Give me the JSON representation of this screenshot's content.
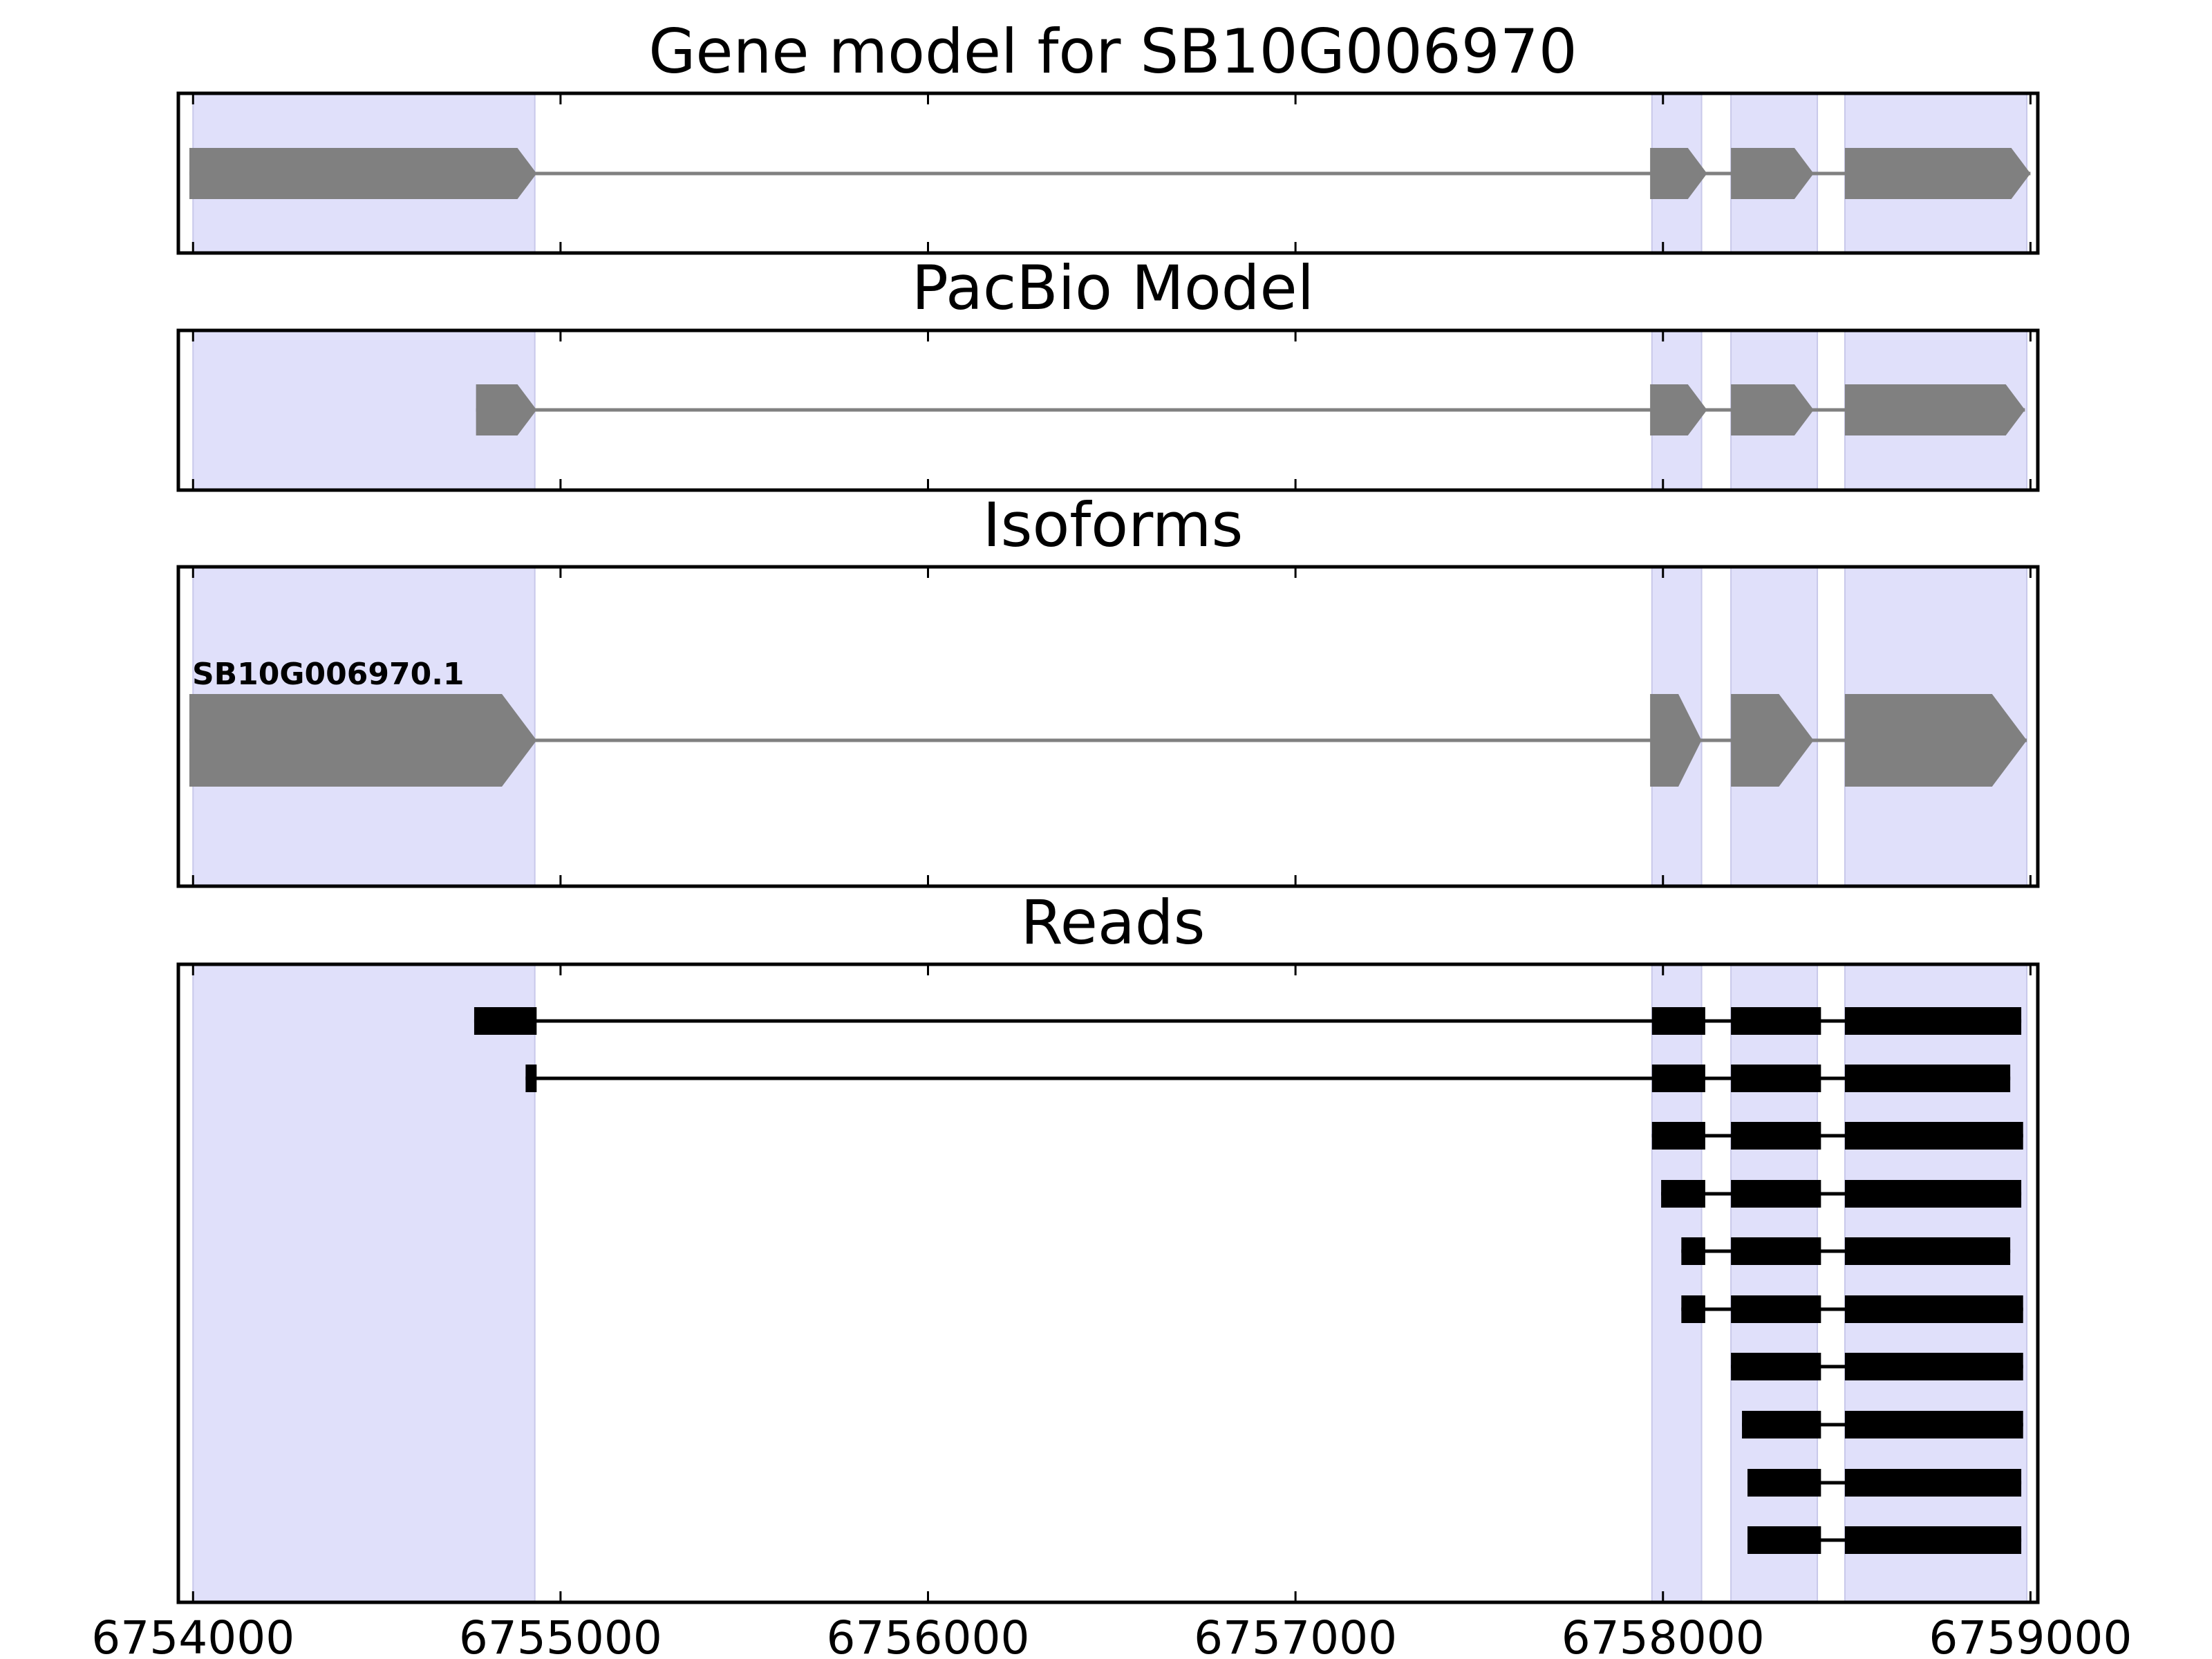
{
  "colors": {
    "exon_region_shading": "#e0e0fa",
    "gene_feature": "#808080",
    "read_feature": "#000000",
    "axis": "#000000"
  },
  "chart_data": {
    "type": "gene-model-tracks",
    "xlim": [
      6753960,
      6759020
    ],
    "x_ticks": [
      6754000,
      6755000,
      6756000,
      6757000,
      6758000,
      6759000
    ],
    "x_tick_labels": [
      "6754000",
      "6755000",
      "6756000",
      "6757000",
      "6758000",
      "6759000"
    ],
    "shaded_exon_regions": [
      [
        6754000,
        6754930
      ],
      [
        6757970,
        6758105
      ],
      [
        6758185,
        6758420
      ],
      [
        6758495,
        6758990
      ]
    ],
    "panels": [
      {
        "key": "gene_model",
        "title": "Gene model for SB10G006970",
        "strand": "+",
        "features": [
          {
            "name": "",
            "exons": [
              [
                6753990,
                6754935
              ],
              [
                6757965,
                6758120
              ],
              [
                6758185,
                6758410
              ],
              [
                6758495,
                6759000
              ]
            ]
          }
        ]
      },
      {
        "key": "pacbio_model",
        "title": "PacBio Model",
        "strand": "+",
        "features": [
          {
            "name": "",
            "exons": [
              [
                6754770,
                6754935
              ],
              [
                6757965,
                6758120
              ],
              [
                6758185,
                6758410
              ],
              [
                6758495,
                6758985
              ]
            ]
          }
        ]
      },
      {
        "key": "isoforms",
        "title": "Isoforms",
        "strand": "+",
        "features": [
          {
            "name": "SB10G006970.1",
            "exons": [
              [
                6753990,
                6754935
              ],
              [
                6757965,
                6758105
              ],
              [
                6758185,
                6758410
              ],
              [
                6758495,
                6758990
              ]
            ]
          }
        ]
      },
      {
        "key": "reads",
        "title": "Reads",
        "features": [
          {
            "exons": [
              [
                6754765,
                6754935
              ],
              [
                6757970,
                6758115
              ],
              [
                6758185,
                6758430
              ],
              [
                6758495,
                6758975
              ]
            ]
          },
          {
            "exons": [
              [
                6754905,
                6754935
              ],
              [
                6757970,
                6758115
              ],
              [
                6758185,
                6758430
              ],
              [
                6758495,
                6758945
              ]
            ]
          },
          {
            "exons": [
              [
                6757970,
                6758115
              ],
              [
                6758185,
                6758430
              ],
              [
                6758495,
                6758980
              ]
            ]
          },
          {
            "exons": [
              [
                6757995,
                6758115
              ],
              [
                6758185,
                6758430
              ],
              [
                6758495,
                6758975
              ]
            ]
          },
          {
            "exons": [
              [
                6758050,
                6758115
              ],
              [
                6758185,
                6758430
              ],
              [
                6758495,
                6758945
              ]
            ]
          },
          {
            "exons": [
              [
                6758050,
                6758115
              ],
              [
                6758185,
                6758430
              ],
              [
                6758495,
                6758980
              ]
            ]
          },
          {
            "exons": [
              [
                6758185,
                6758430
              ],
              [
                6758495,
                6758980
              ]
            ]
          },
          {
            "exons": [
              [
                6758215,
                6758430
              ],
              [
                6758495,
                6758980
              ]
            ]
          },
          {
            "exons": [
              [
                6758230,
                6758430
              ],
              [
                6758495,
                6758975
              ]
            ]
          },
          {
            "exons": [
              [
                6758230,
                6758430
              ],
              [
                6758495,
                6758975
              ]
            ]
          }
        ]
      }
    ]
  }
}
